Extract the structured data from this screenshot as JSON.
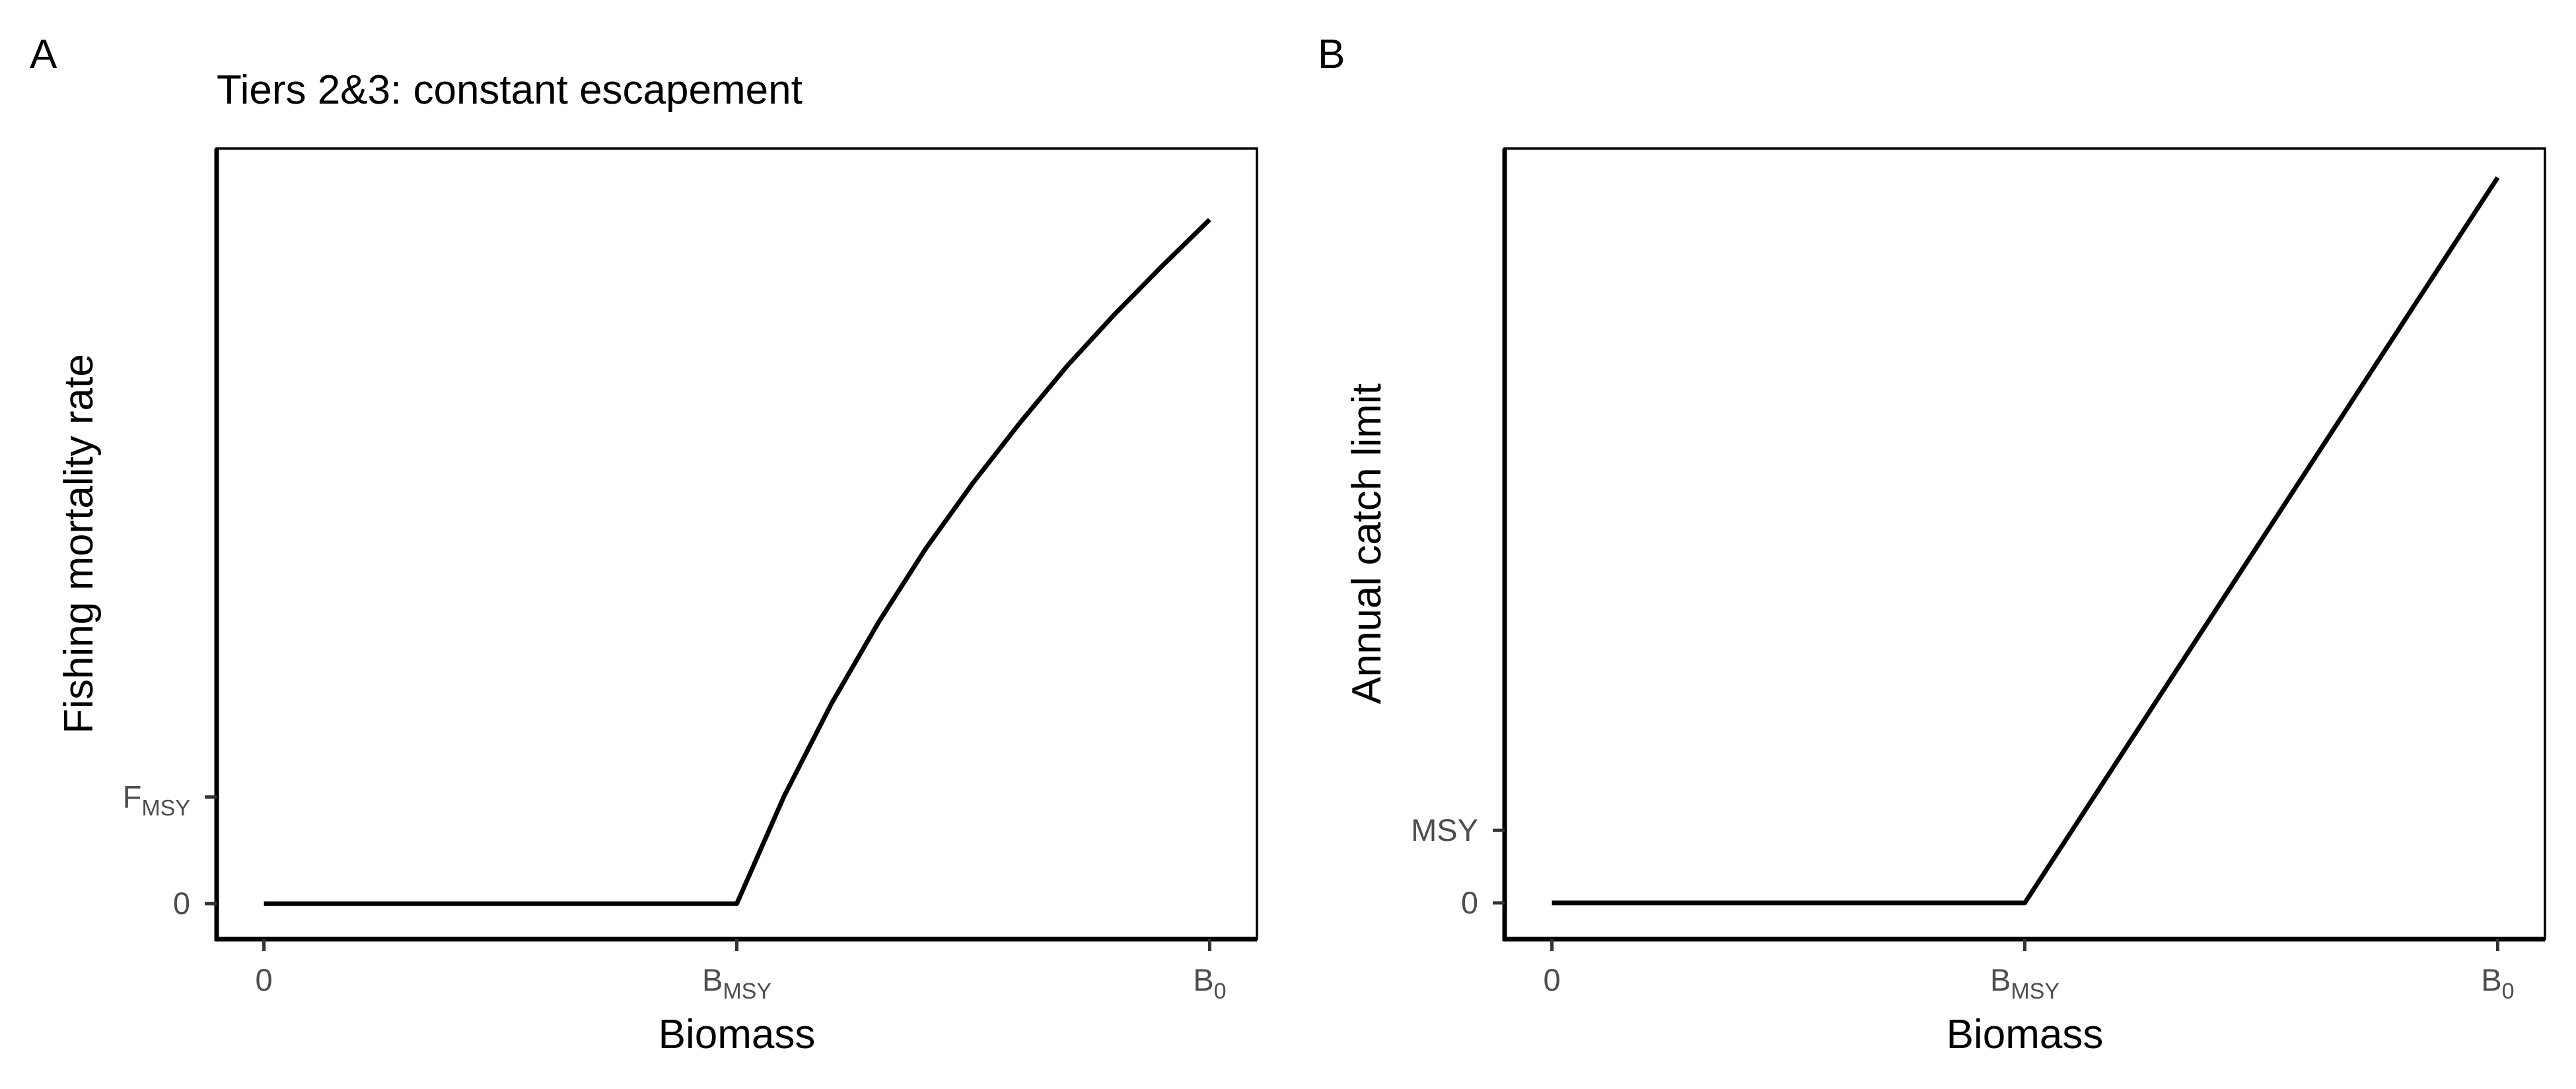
{
  "chart_data": [
    {
      "type": "line",
      "panel_tag": "A",
      "title": "Tiers 2&3: constant escapement",
      "xlabel": "Biomass",
      "ylabel": "Fishing mortality rate",
      "x_ticks": [
        {
          "main": "0",
          "sub": ""
        },
        {
          "main": "B",
          "sub": "MSY"
        },
        {
          "main": "B",
          "sub": "0"
        }
      ],
      "y_ticks": [
        {
          "main": "0",
          "sub": ""
        },
        {
          "main": "F",
          "sub": "MSY"
        }
      ],
      "x_tick_values": [
        0,
        1,
        2
      ],
      "y_tick_values": [
        0,
        0.12
      ],
      "xlim": [
        -0.1,
        2.1
      ],
      "ylim": [
        -0.04,
        0.85
      ],
      "series": [
        {
          "x": [
            0,
            0.5,
            1.0,
            1.1,
            1.2,
            1.3,
            1.4,
            1.5,
            1.6,
            1.7,
            1.8,
            1.9,
            2.0
          ],
          "y": [
            0,
            0,
            0,
            0.121,
            0.225,
            0.317,
            0.4,
            0.474,
            0.542,
            0.606,
            0.664,
            0.718,
            0.77
          ]
        }
      ],
      "grid": false,
      "legend": "none"
    },
    {
      "type": "line",
      "panel_tag": "B",
      "title": "",
      "xlabel": "Biomass",
      "ylabel": "Annual catch limit",
      "x_ticks": [
        {
          "main": "0",
          "sub": ""
        },
        {
          "main": "B",
          "sub": "MSY"
        },
        {
          "main": "B",
          "sub": "0"
        }
      ],
      "y_ticks": [
        {
          "main": "0",
          "sub": ""
        },
        {
          "main": "MSY",
          "sub": ""
        }
      ],
      "x_tick_values": [
        0,
        1,
        2
      ],
      "y_tick_values": [
        0,
        1
      ],
      "xlim": [
        -0.1,
        2.1
      ],
      "ylim": [
        -0.5,
        10.4
      ],
      "series": [
        {
          "x": [
            0,
            1.0,
            2.0
          ],
          "y": [
            0,
            0,
            10
          ]
        }
      ],
      "grid": false,
      "legend": "none"
    }
  ]
}
